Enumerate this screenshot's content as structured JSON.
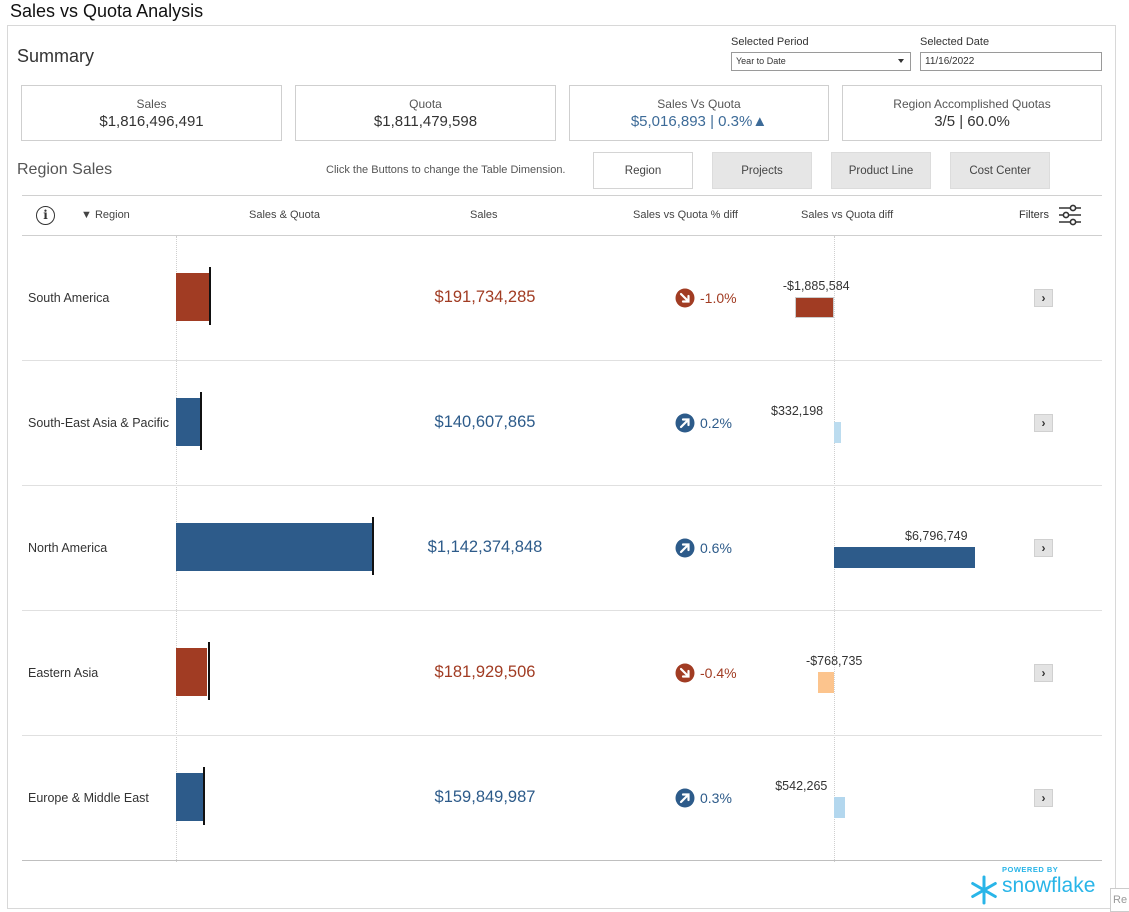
{
  "app_title": "Sales vs Quota Analysis",
  "summary": {
    "title": "Summary",
    "selected_period_label": "Selected Period",
    "selected_period_value": "Year to Date",
    "selected_date_label": "Selected Date",
    "selected_date_value": "11/16/2022",
    "kpis": [
      {
        "label": "Sales",
        "value": "$1,816,496,491"
      },
      {
        "label": "Quota",
        "value": "$1,811,479,598"
      },
      {
        "label": "Sales Vs Quota",
        "value": "$5,016,893 | 0.3%▲"
      },
      {
        "label": "Region Accomplished Quotas",
        "value": "3/5 | 60.0%"
      }
    ]
  },
  "region_sales": {
    "title": "Region Sales",
    "hint": "Click the Buttons to change the Table Dimension.",
    "buttons": [
      "Region",
      "Projects",
      "Product Line",
      "Cost Center"
    ],
    "active_button": "Region"
  },
  "table": {
    "headers": {
      "info": "i",
      "region": "▼ Region",
      "sales_quota": "Sales & Quota",
      "sales": "Sales",
      "pct_diff": "Sales vs Quota % diff",
      "diff": "Sales vs Quota diff",
      "filters": "Filters"
    },
    "rows": [
      {
        "region": "South America",
        "sales_display": "$191,734,285",
        "sales": 191734285,
        "quota": 193619869,
        "pct": "-1.0%",
        "diff_display": "-$1,885,584",
        "diff": -1885584,
        "status": "below",
        "diff_color": "#a13c23"
      },
      {
        "region": "South-East Asia & Pacific",
        "sales_display": "$140,607,865",
        "sales": 140607865,
        "quota": 140275667,
        "pct": "0.2%",
        "diff_display": "$332,198",
        "diff": 332198,
        "status": "above",
        "diff_color": "#bcdcef"
      },
      {
        "region": "North America",
        "sales_display": "$1,142,374,848",
        "sales": 1142374848,
        "quota": 1135578099,
        "pct": "0.6%",
        "diff_display": "$6,796,749",
        "diff": 6796749,
        "status": "above",
        "diff_color": "#2d5b8a"
      },
      {
        "region": "Eastern Asia",
        "sales_display": "$181,929,506",
        "sales": 181929506,
        "quota": 182698241,
        "pct": "-0.4%",
        "diff_display": "-$768,735",
        "diff": -768735,
        "status": "below",
        "diff_color": "#fcc48d"
      },
      {
        "region": "Europe & Middle East",
        "sales_display": "$159,849,987",
        "sales": 159849987,
        "quota": 159307722,
        "pct": "0.3%",
        "diff_display": "$542,265",
        "diff": 542265,
        "status": "above",
        "diff_color": "#b3d7ee"
      }
    ],
    "arrow_glyph": "›"
  },
  "colors": {
    "above": "#2d5b8a",
    "below": "#a13c23",
    "brand": "#29b5e8"
  },
  "brand": {
    "powered": "POWERED BY",
    "name": "snowflake"
  },
  "corner_tab": "Re"
}
